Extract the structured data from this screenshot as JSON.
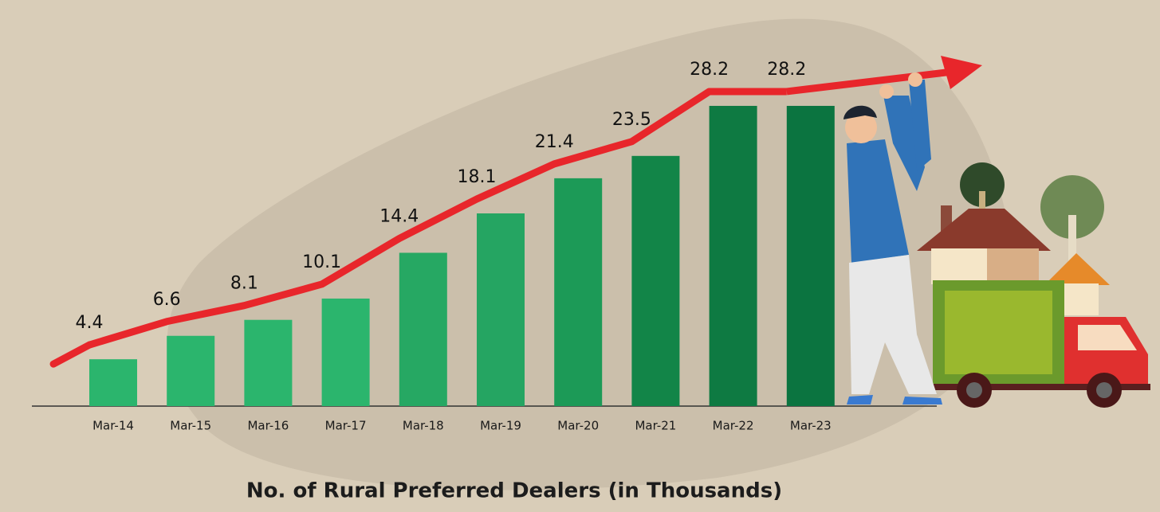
{
  "chart_data": {
    "type": "bar",
    "title": "No. of Rural Preferred Dealers (in Thousands)",
    "categories": [
      "Mar-14",
      "Mar-15",
      "Mar-16",
      "Mar-17",
      "Mar-18",
      "Mar-19",
      "Mar-20",
      "Mar-21",
      "Mar-22",
      "Mar-23"
    ],
    "values": [
      4.4,
      6.6,
      8.1,
      10.1,
      14.4,
      18.1,
      21.4,
      23.5,
      28.2,
      28.2
    ],
    "colors": [
      "#2bb56d",
      "#2bb56d",
      "#2bb56d",
      "#2bb56d",
      "#26a863",
      "#25a562",
      "#1c9a57",
      "#128548",
      "#0e7a42",
      "#0b7440"
    ],
    "trend_color": "#e8262b"
  }
}
